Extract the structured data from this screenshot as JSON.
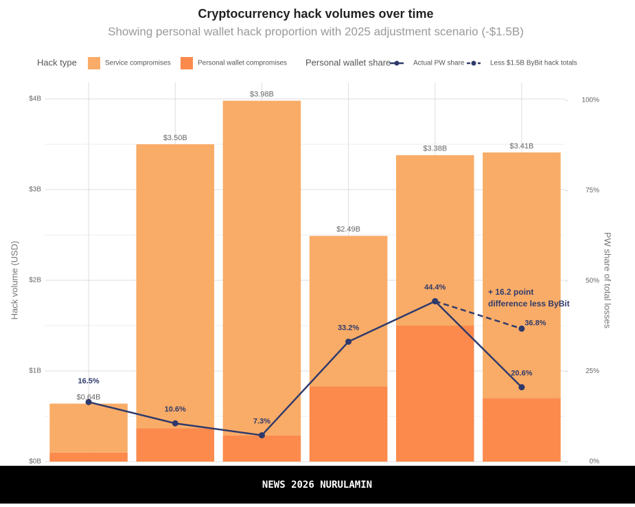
{
  "chart_data": {
    "type": "bar",
    "title": "Cryptocurrency hack volumes over time",
    "subtitle": "Showing personal wallet hack proportion with 2025 adjustment scenario (-$1.5B)",
    "legend_title": "Hack type",
    "line_legend_title": "Personal wallet share",
    "y_label": "Hack volume (USD)",
    "y2_label": "PW share of total losses",
    "categories": [
      null,
      null,
      null,
      null,
      null,
      null
    ],
    "ylim": [
      0,
      4
    ],
    "yticks": [
      {
        "value": 0,
        "label": "$0B"
      },
      {
        "value": 1,
        "label": "$1B"
      },
      {
        "value": 2,
        "label": "$2B"
      },
      {
        "value": 3,
        "label": "$3B"
      },
      {
        "value": 4,
        "label": "$4B"
      }
    ],
    "y2lim": [
      0,
      100
    ],
    "y2ticks": [
      {
        "value": 0,
        "label": "0%"
      },
      {
        "value": 25,
        "label": "25%"
      },
      {
        "value": 50,
        "label": "50%"
      },
      {
        "value": 75,
        "label": "75%"
      },
      {
        "value": 100,
        "label": "100%"
      }
    ],
    "grid": true,
    "series": [
      {
        "name": "Personal wallet compromises",
        "color": "#fb8a4c",
        "values": [
          0.1,
          0.37,
          0.29,
          0.83,
          1.5,
          0.7
        ]
      },
      {
        "name": "Service compromises",
        "color": "#f9ac67",
        "values": [
          0.54,
          3.13,
          3.69,
          1.66,
          1.88,
          2.71
        ]
      }
    ],
    "totals": {
      "values": [
        0.64,
        3.5,
        3.98,
        2.49,
        3.38,
        3.41
      ],
      "value_labels": [
        "$0.64B",
        "$3.50B",
        "$3.98B",
        "$2.49B",
        "$3.38B",
        "$3.41B"
      ]
    },
    "lines": [
      {
        "name": "Actual PW share",
        "color": "#2f3a6b",
        "axis": "y2",
        "dashed": false,
        "values": [
          16.5,
          10.6,
          7.3,
          33.2,
          44.4,
          20.6
        ],
        "value_labels": [
          "16.5%",
          "10.6%",
          "7.3%",
          "33.2%",
          "44.4%",
          "20.6%"
        ]
      },
      {
        "name": "Less $1.5B ByBit hack totals",
        "color": "#2f3a6b",
        "axis": "y2",
        "dashed": true,
        "values": [
          null,
          null,
          null,
          null,
          44.4,
          36.8
        ],
        "value_labels": [
          null,
          null,
          null,
          null,
          null,
          "36.8%"
        ]
      }
    ],
    "annotation": [
      "+ 16.2 point",
      "difference less ByBit"
    ],
    "watermark": "NEWS 2026 NURULAMIN"
  }
}
